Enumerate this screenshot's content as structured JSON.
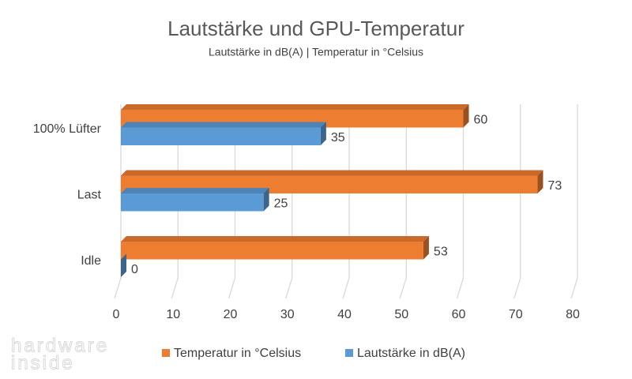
{
  "chart_data": {
    "type": "bar3d-horizontal",
    "title": "Lautstärke und GPU-Temperatur",
    "subtitle": "Lautstärke in dB(A) | Temperatur in °Celsius",
    "categories": [
      "Idle",
      "Last",
      "100% Lüfter"
    ],
    "series": [
      {
        "name": "Temperatur in °Celsius",
        "color": "#ed7d31",
        "values": [
          53,
          73,
          60
        ]
      },
      {
        "name": "Lautstärke in dB(A)",
        "color": "#5b9bd5",
        "values": [
          0,
          25,
          35
        ]
      }
    ],
    "xlim": [
      0,
      80
    ],
    "xticks": [
      0,
      10,
      20,
      30,
      40,
      50,
      60,
      70,
      80
    ],
    "grid": true,
    "legend": "bottom",
    "watermark": [
      "hardware",
      "inside"
    ]
  }
}
